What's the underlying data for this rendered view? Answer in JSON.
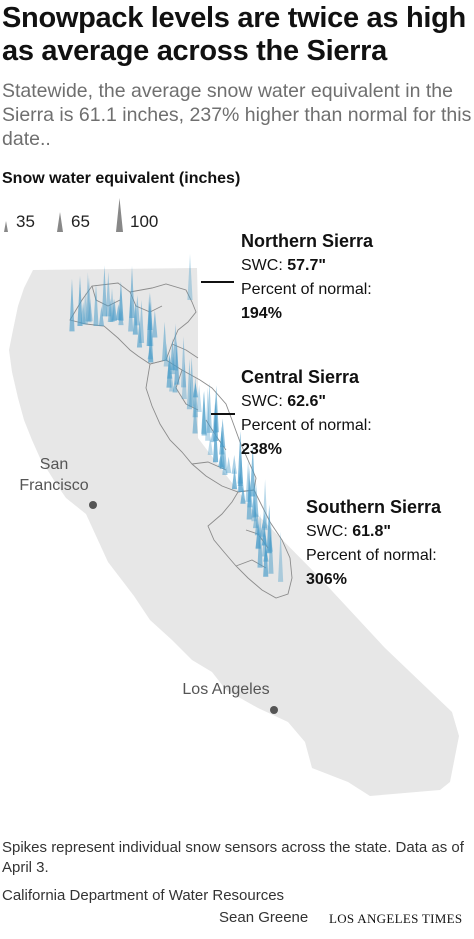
{
  "headline": "Snowpack levels are twice as high as average across the Sierra",
  "dek": "Statewide, the average snow water equivalent in the Sierra is 61.1 inches, 237% higher than normal for this date..",
  "legend": {
    "title": "Snow water equivalent (inches)",
    "items": [
      {
        "label": "35",
        "value": 35
      },
      {
        "label": "65",
        "value": 65
      },
      {
        "label": "100",
        "value": 100
      }
    ]
  },
  "regions": [
    {
      "name": "Northern Sierra",
      "swc_label": "SWC:",
      "swc": "57.7\"",
      "pct_label": "Percent of normal:",
      "pct": "194%"
    },
    {
      "name": "Central Sierra",
      "swc_label": "SWC:",
      "swc": "62.6\"",
      "pct_label": "Percent of normal:",
      "pct": "238%"
    },
    {
      "name": "Southern Sierra",
      "swc_label": "SWC:",
      "swc": "61.8\"",
      "pct_label": "Percent of normal:",
      "pct": "306%"
    }
  ],
  "cities": {
    "san_francisco": "San Francisco",
    "los_angeles": "Los Angeles"
  },
  "colors": {
    "state_fill": "#e7e7e7",
    "spike": "#4a9cc9",
    "text_gray": "#6f6f6f"
  },
  "footnote": "Spikes represent individual snow sensors across the state. Data as of April 3.",
  "source": "California Department of Water Resources",
  "credit": "Sean Greene",
  "brand": "LOS ANGELES TIMES"
}
